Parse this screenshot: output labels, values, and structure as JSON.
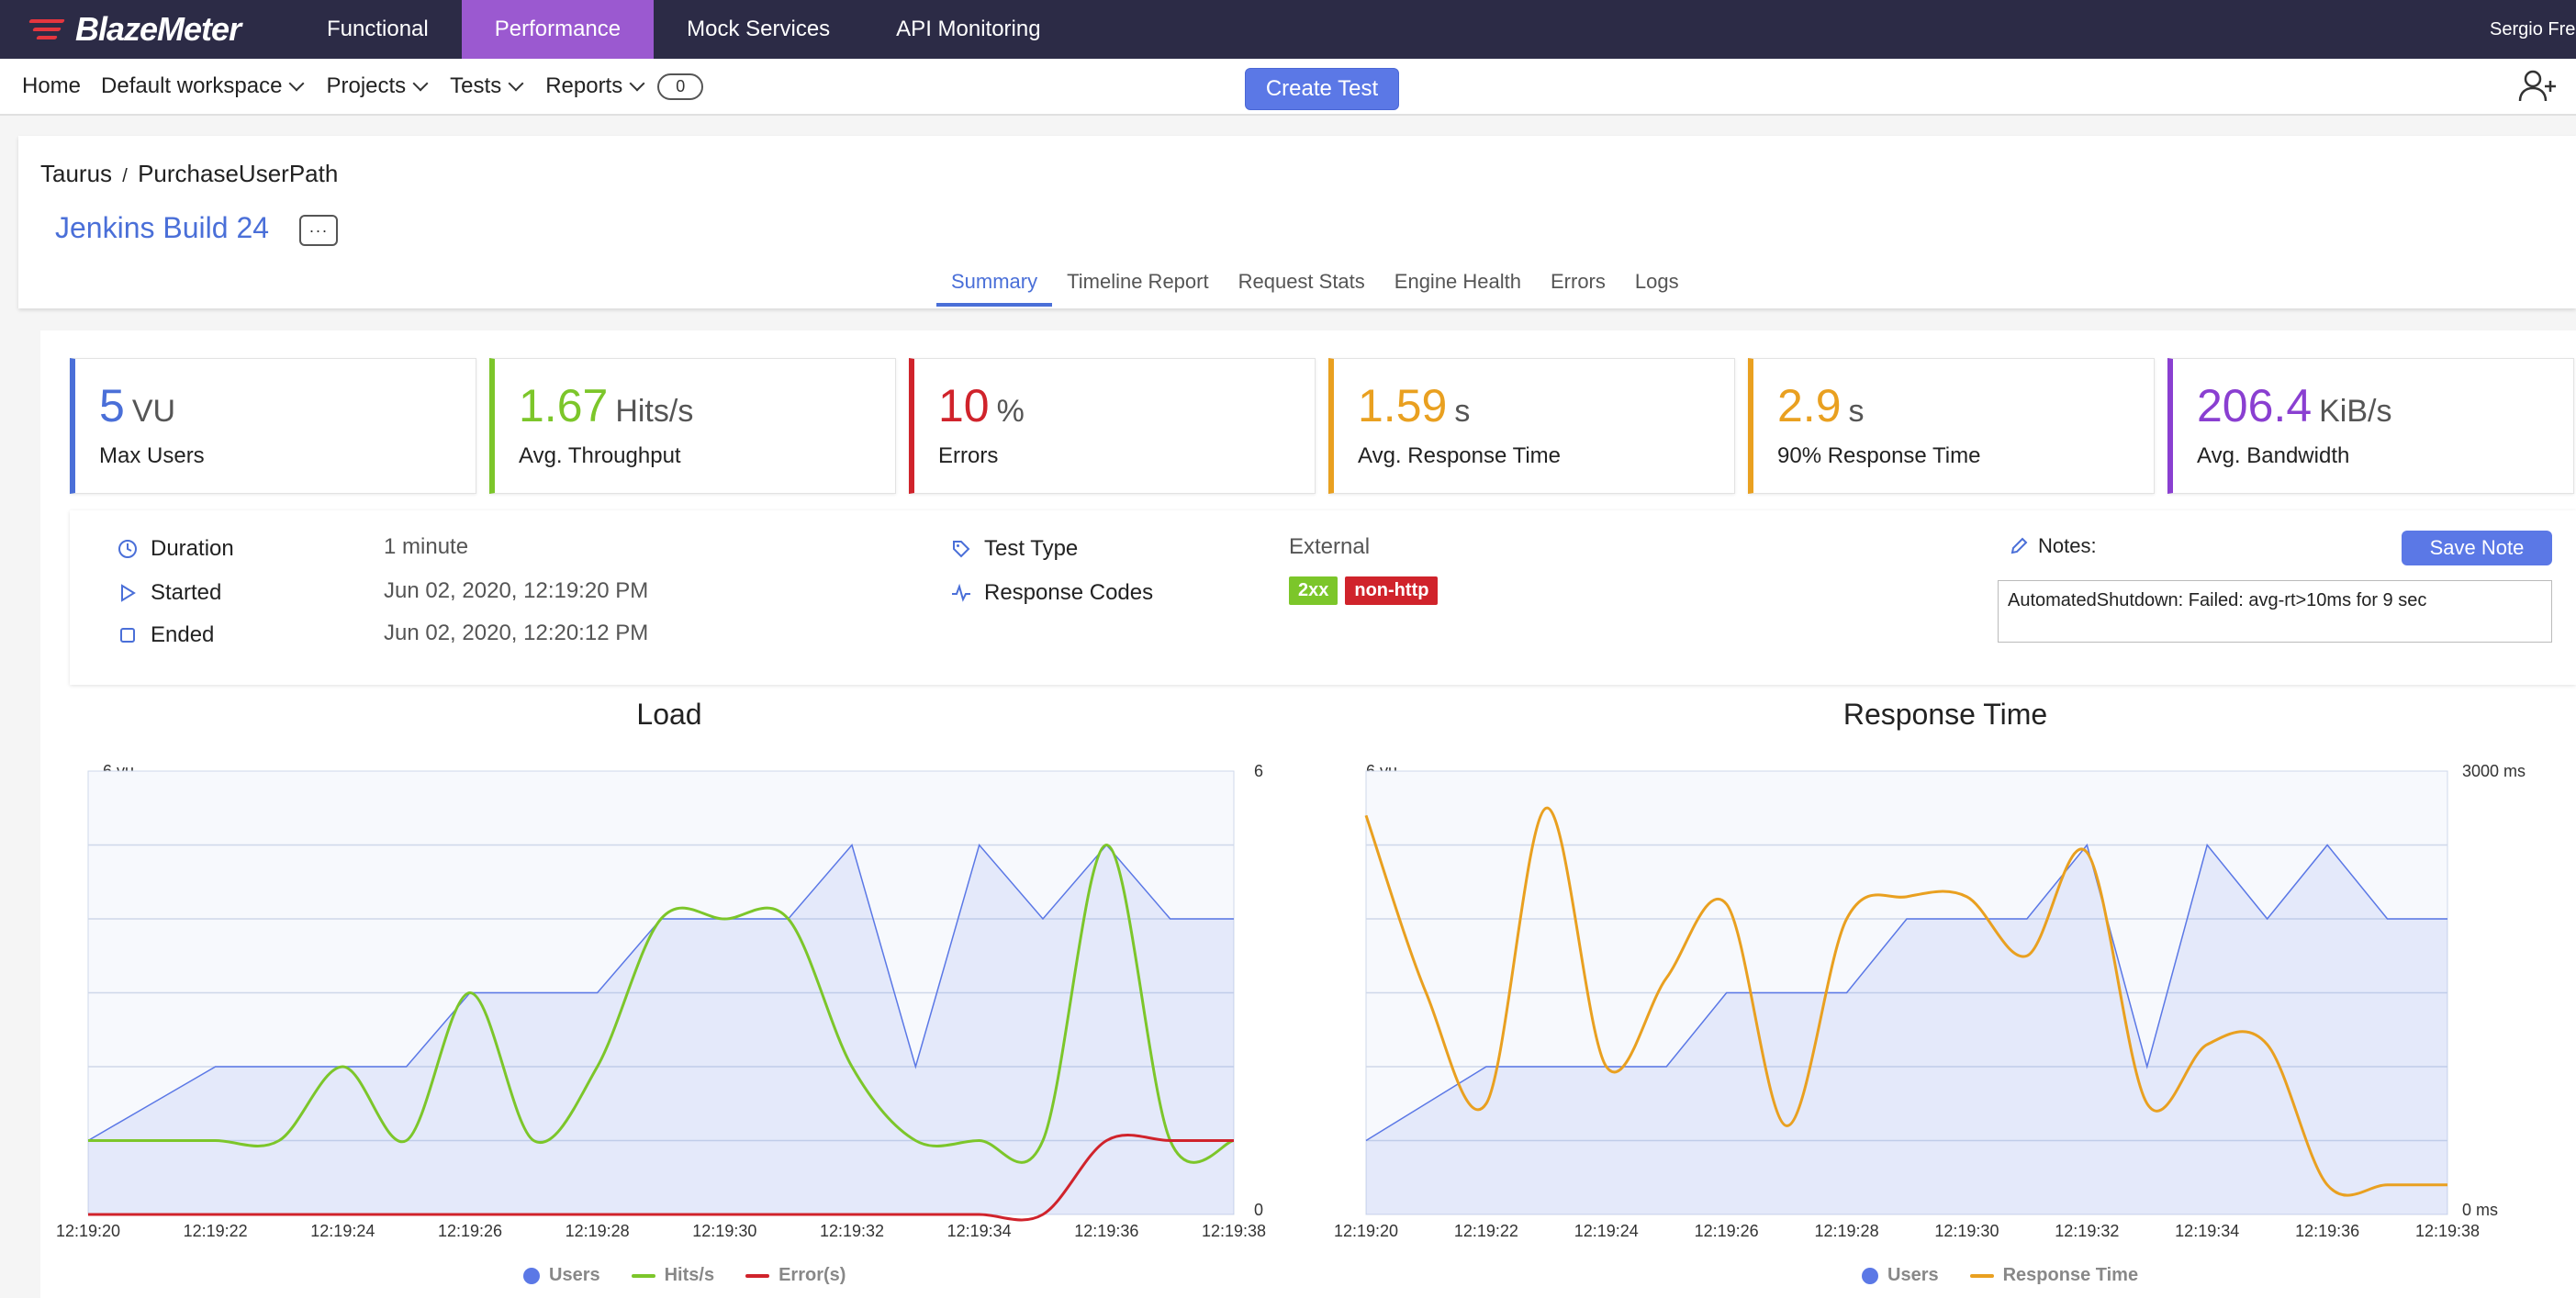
{
  "app": {
    "brand": "BlazeMeter",
    "nav": [
      "Functional",
      "Performance",
      "Mock Services",
      "API Monitoring"
    ],
    "active_nav": "Performance",
    "user": "Sergio Frei"
  },
  "subnav": {
    "home": "Home",
    "workspace": "Default workspace",
    "projects": "Projects",
    "tests": "Tests",
    "reports": "Reports",
    "count": "0",
    "create": "Create Test"
  },
  "header": {
    "breadcrumb_parent": "Taurus",
    "breadcrumb_sep": "/",
    "breadcrumb_child": "PurchaseUserPath",
    "run_title": "Jenkins Build 24",
    "more": "···",
    "tabs": [
      "Summary",
      "Timeline Report",
      "Request Stats",
      "Engine Health",
      "Errors",
      "Logs"
    ],
    "active_tab": "Summary"
  },
  "kpis": [
    {
      "value": "5",
      "unit": "VU",
      "label": "Max Users",
      "color": "#4a6fd8"
    },
    {
      "value": "1.67",
      "unit": "Hits/s",
      "label": "Avg. Throughput",
      "color": "#7cc62a"
    },
    {
      "value": "10",
      "unit": "%",
      "label": "Errors",
      "color": "#d0232b"
    },
    {
      "value": "1.59",
      "unit": "s",
      "label": "Avg. Response Time",
      "color": "#e9a020"
    },
    {
      "value": "2.9",
      "unit": "s",
      "label": "90% Response Time",
      "color": "#e9a020"
    },
    {
      "value": "206.4",
      "unit": "KiB/s",
      "label": "Avg. Bandwidth",
      "color": "#8a3fd1"
    }
  ],
  "info": {
    "duration_label": "Duration",
    "duration": "1 minute",
    "started_label": "Started",
    "started": "Jun 02, 2020, 12:19:20 PM",
    "ended_label": "Ended",
    "ended": "Jun 02, 2020, 12:20:12 PM",
    "test_type_label": "Test Type",
    "test_type": "External",
    "response_codes_label": "Response Codes",
    "codes": [
      {
        "text": "2xx",
        "color": "#7cc62a"
      },
      {
        "text": "non-http",
        "color": "#d0232b"
      }
    ],
    "notes_label": "Notes:",
    "save_note": "Save Note",
    "note_text": "AutomatedShutdown: Failed: avg-rt>10ms for 9 sec"
  },
  "chart_data": [
    {
      "type": "line",
      "title": "Load",
      "x": [
        "12:19:20",
        "12:19:21",
        "12:19:22",
        "12:19:23",
        "12:19:24",
        "12:19:25",
        "12:19:26",
        "12:19:27",
        "12:19:28",
        "12:19:29",
        "12:19:30",
        "12:19:31",
        "12:19:32",
        "12:19:33",
        "12:19:34",
        "12:19:35",
        "12:19:36",
        "12:19:37",
        "12:19:38"
      ],
      "x_ticks": [
        "12:19:20",
        "12:19:22",
        "12:19:24",
        "12:19:26",
        "12:19:28",
        "12:19:30",
        "12:19:32",
        "12:19:34",
        "12:19:36",
        "12:19:38"
      ],
      "y_left_label": "6 vu",
      "y_right_top": "6",
      "y_right_bottom": "0",
      "ylim": [
        0,
        6
      ],
      "series": [
        {
          "name": "Users",
          "color": "#5b78e6",
          "fill": true,
          "values": [
            1,
            1.5,
            2,
            2,
            2,
            2,
            3,
            3,
            3,
            4,
            4,
            4,
            5,
            2,
            5,
            4,
            5,
            4,
            4
          ]
        },
        {
          "name": "Hits/s",
          "color": "#7cc62a",
          "smooth": true,
          "values": [
            1,
            1,
            1,
            1,
            2,
            1,
            3,
            1,
            2,
            4,
            4,
            4,
            2,
            1,
            1,
            1,
            5,
            1,
            1
          ]
        },
        {
          "name": "Error(s)",
          "color": "#d0232b",
          "smooth": true,
          "values": [
            0,
            0,
            0,
            0,
            0,
            0,
            0,
            0,
            0,
            0,
            0,
            0,
            0,
            0,
            0,
            0,
            1,
            1,
            1
          ]
        }
      ]
    },
    {
      "type": "line",
      "title": "Response Time",
      "x": [
        "12:19:20",
        "12:19:21",
        "12:19:22",
        "12:19:23",
        "12:19:24",
        "12:19:25",
        "12:19:26",
        "12:19:27",
        "12:19:28",
        "12:19:29",
        "12:19:30",
        "12:19:31",
        "12:19:32",
        "12:19:33",
        "12:19:34",
        "12:19:35",
        "12:19:36",
        "12:19:37",
        "12:19:38"
      ],
      "x_ticks": [
        "12:19:20",
        "12:19:22",
        "12:19:24",
        "12:19:26",
        "12:19:28",
        "12:19:30",
        "12:19:32",
        "12:19:34",
        "12:19:36",
        "12:19:38"
      ],
      "y_left_label": "6 vu",
      "y_right_top": "3000 ms",
      "y_right_bottom": "0 ms",
      "ylim": [
        0,
        6
      ],
      "y2lim": [
        0,
        3000
      ],
      "series": [
        {
          "name": "Users",
          "color": "#5b78e6",
          "fill": true,
          "axis": "left",
          "values": [
            1,
            1.5,
            2,
            2,
            2,
            2,
            3,
            3,
            3,
            4,
            4,
            4,
            5,
            2,
            5,
            4,
            5,
            4,
            4
          ]
        },
        {
          "name": "Response Time",
          "color": "#e9a020",
          "smooth": true,
          "axis": "right",
          "values": [
            2700,
            1500,
            750,
            2750,
            1000,
            1600,
            2100,
            600,
            2000,
            2150,
            2150,
            1750,
            2450,
            750,
            1150,
            1150,
            200,
            200,
            200
          ]
        }
      ]
    }
  ]
}
